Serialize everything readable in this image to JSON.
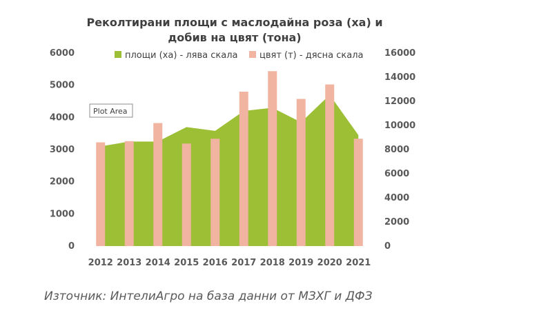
{
  "chart_data": {
    "type": "bar+area",
    "title": [
      "Реколтирани площи с маслодайна роза (ха) и",
      "добив на цвят (тона)"
    ],
    "categories": [
      "2012",
      "2013",
      "2014",
      "2015",
      "2016",
      "2017",
      "2018",
      "2019",
      "2020",
      "2021"
    ],
    "series": [
      {
        "name": "площи (ха) - лява скала",
        "type": "area",
        "axis": "left",
        "color": "#9cbf35",
        "values": [
          3100,
          3250,
          3250,
          3700,
          3580,
          4200,
          4300,
          3850,
          4700,
          3450
        ]
      },
      {
        "name": "цвят (т) - дясна скала",
        "type": "bar",
        "axis": "right",
        "color": "#f0b4a0",
        "values": [
          8600,
          8700,
          10200,
          8500,
          8900,
          12800,
          14500,
          12200,
          13400,
          8900
        ]
      }
    ],
    "y_left": {
      "min": 0,
      "max": 6000,
      "ticks": [
        "0",
        "1000",
        "2000",
        "3000",
        "4000",
        "5000",
        "6000"
      ]
    },
    "y_right": {
      "min": 0,
      "max": 16000,
      "ticks": [
        "0",
        "2000",
        "4000",
        "6000",
        "8000",
        "10000",
        "12000",
        "14000",
        "16000"
      ]
    },
    "legend_position": "top",
    "grid": false,
    "tooltip": "Plot Area"
  },
  "source": "Източник: ИнтелиАгро на база данни от МЗХГ и ДФЗ"
}
